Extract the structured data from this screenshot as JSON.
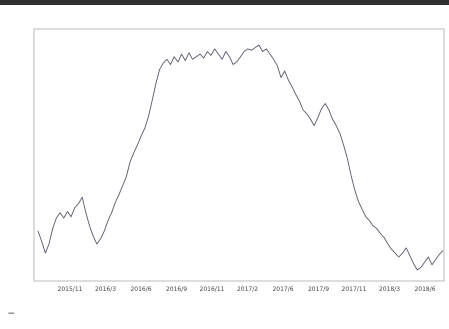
{
  "chart_data": {
    "type": "line",
    "title": "",
    "subtitle": "",
    "xlabel": "",
    "ylabel": "",
    "x_tick_labels": [
      "2015/11",
      "2016/3",
      "2016/6",
      "2016/9",
      "2016/11",
      "2017/2",
      "2017/6",
      "2017/9",
      "2017/11",
      "2018/3",
      "2018/6"
    ],
    "y_tick_labels": [
      "",
      "",
      "",
      "",
      "",
      "",
      "",
      "",
      "",
      "",
      "",
      ""
    ],
    "grid": false,
    "legend": "bottom-left",
    "series": [
      {
        "name": "",
        "color": "#5a5a6e",
        "x": [
          0,
          1,
          2,
          3,
          4,
          5,
          6,
          7,
          8,
          9,
          10,
          11,
          12,
          13,
          14,
          15,
          16,
          17,
          18,
          19,
          20,
          21,
          22,
          23,
          24,
          25,
          26,
          27,
          28,
          29,
          30,
          31,
          32,
          33,
          34,
          35,
          36,
          37,
          38,
          39,
          40,
          41,
          42,
          43,
          44,
          45,
          46,
          47,
          48,
          49,
          50,
          51,
          52,
          53,
          54,
          55,
          56,
          57,
          58,
          59,
          60,
          61,
          62,
          63,
          64,
          65,
          66,
          67,
          68,
          69,
          70,
          71,
          72,
          73,
          74,
          75,
          76,
          77,
          78,
          79,
          80,
          81,
          82,
          83,
          84,
          85,
          86,
          87,
          88,
          89,
          90,
          91,
          92,
          93,
          94,
          95,
          96,
          97,
          98,
          99,
          100,
          101,
          102,
          103,
          104,
          105,
          106,
          107,
          108,
          109,
          110
        ],
        "y": [
          11.0,
          10.2,
          9.3,
          10.0,
          11.2,
          12.0,
          12.4,
          12.0,
          12.5,
          12.1,
          12.8,
          13.1,
          13.6,
          12.4,
          11.4,
          10.6,
          10.0,
          10.4,
          11.0,
          11.8,
          12.4,
          13.2,
          13.8,
          14.5,
          15.2,
          16.3,
          17.0,
          17.6,
          18.3,
          18.9,
          19.8,
          21.0,
          22.3,
          23.4,
          23.9,
          24.2,
          23.8,
          24.4,
          24.0,
          24.6,
          24.1,
          24.7,
          24.2,
          24.4,
          24.6,
          24.3,
          24.8,
          24.5,
          25.0,
          24.6,
          24.2,
          24.8,
          24.4,
          23.8,
          24.0,
          24.4,
          24.8,
          25.0,
          24.9,
          25.1,
          25.3,
          24.8,
          25.0,
          24.6,
          24.2,
          23.7,
          22.8,
          23.3,
          22.6,
          22.1,
          21.5,
          21.0,
          20.3,
          20.0,
          19.6,
          19.1,
          19.7,
          20.4,
          20.8,
          20.3,
          19.6,
          19.1,
          18.5,
          17.6,
          16.6,
          15.3,
          14.2,
          13.3,
          12.7,
          12.1,
          11.8,
          11.4,
          11.2,
          10.8,
          10.5,
          10.0,
          9.6,
          9.3,
          9.0,
          9.3,
          9.7,
          9.1,
          8.5,
          8.0,
          8.2,
          8.6,
          9.0,
          8.4,
          8.8,
          9.2,
          9.5
        ]
      }
    ]
  }
}
